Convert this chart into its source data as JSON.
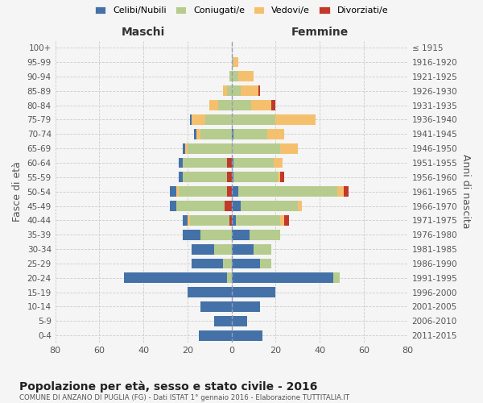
{
  "age_groups": [
    "0-4",
    "5-9",
    "10-14",
    "15-19",
    "20-24",
    "25-29",
    "30-34",
    "35-39",
    "40-44",
    "45-49",
    "50-54",
    "55-59",
    "60-64",
    "65-69",
    "70-74",
    "75-79",
    "80-84",
    "85-89",
    "90-94",
    "95-99",
    "100+"
  ],
  "birth_years": [
    "2011-2015",
    "2006-2010",
    "2001-2005",
    "1996-2000",
    "1991-1995",
    "1986-1990",
    "1981-1985",
    "1976-1980",
    "1971-1975",
    "1966-1970",
    "1961-1965",
    "1956-1960",
    "1951-1955",
    "1946-1950",
    "1941-1945",
    "1936-1940",
    "1931-1935",
    "1926-1930",
    "1921-1925",
    "1916-1920",
    "≤ 1915"
  ],
  "maschi": {
    "celibi": [
      15,
      8,
      14,
      20,
      47,
      14,
      10,
      8,
      2,
      3,
      3,
      2,
      2,
      1,
      1,
      1,
      0,
      0,
      0,
      0,
      0
    ],
    "coniugati": [
      0,
      0,
      0,
      0,
      2,
      4,
      8,
      14,
      18,
      22,
      22,
      20,
      20,
      20,
      14,
      12,
      6,
      2,
      1,
      0,
      0
    ],
    "vedovi": [
      0,
      0,
      0,
      0,
      0,
      0,
      0,
      0,
      1,
      0,
      1,
      0,
      0,
      1,
      2,
      6,
      4,
      2,
      0,
      0,
      0
    ],
    "divorziati": [
      0,
      0,
      0,
      0,
      0,
      0,
      0,
      0,
      1,
      3,
      2,
      2,
      2,
      0,
      0,
      0,
      0,
      0,
      0,
      0,
      0
    ]
  },
  "femmine": {
    "nubili": [
      14,
      7,
      13,
      20,
      46,
      13,
      10,
      8,
      2,
      4,
      3,
      1,
      1,
      0,
      1,
      0,
      0,
      0,
      0,
      0,
      0
    ],
    "coniugate": [
      0,
      0,
      0,
      0,
      3,
      5,
      8,
      14,
      20,
      26,
      45,
      20,
      18,
      22,
      15,
      20,
      9,
      4,
      3,
      1,
      0
    ],
    "vedove": [
      0,
      0,
      0,
      0,
      0,
      0,
      0,
      0,
      2,
      2,
      3,
      1,
      4,
      8,
      8,
      18,
      9,
      8,
      7,
      2,
      0
    ],
    "divorziate": [
      0,
      0,
      0,
      0,
      0,
      0,
      0,
      0,
      2,
      0,
      2,
      2,
      0,
      0,
      0,
      0,
      2,
      1,
      0,
      0,
      0
    ]
  },
  "colors": {
    "celibi_nubili": "#4472a8",
    "coniugati": "#b5cc8e",
    "vedovi": "#f5c06e",
    "divorziati": "#c0392b"
  },
  "xlim": 80,
  "title": "Popolazione per età, sesso e stato civile - 2016",
  "subtitle": "COMUNE DI ANZANO DI PUGLIA (FG) - Dati ISTAT 1° gennaio 2016 - Elaborazione TUTTITALIA.IT",
  "ylabel_left": "Fasce di età",
  "ylabel_right": "Anni di nascita",
  "xlabel_maschi": "Maschi",
  "xlabel_femmine": "Femmine",
  "legend_labels": [
    "Celibi/Nubili",
    "Coniugati/e",
    "Vedovi/e",
    "Divorziati/e"
  ],
  "background_color": "#f5f5f5",
  "grid_color": "#cccccc"
}
